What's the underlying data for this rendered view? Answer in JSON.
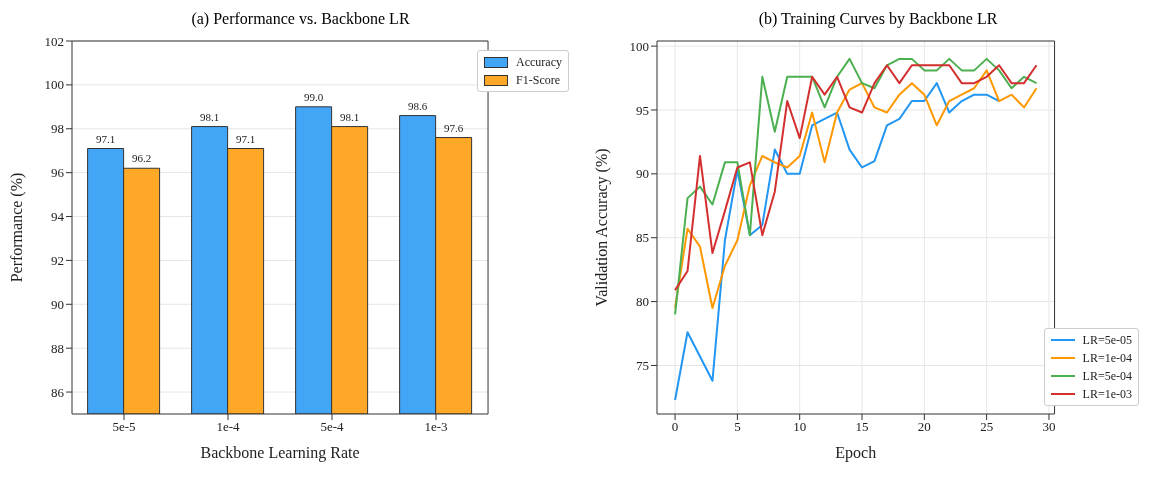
{
  "chart_data": [
    {
      "type": "bar",
      "title": "(a) Performance vs. Backbone LR",
      "xlabel": "Backbone Learning Rate",
      "ylabel": "Performance (%)",
      "categories": [
        "5e-5",
        "1e-4",
        "5e-4",
        "1e-3"
      ],
      "series": [
        {
          "name": "Accuracy",
          "color": "#42a5f5",
          "values": [
            97.1,
            98.1,
            99.0,
            98.6
          ],
          "value_labels": [
            "97.1",
            "98.1",
            "99.0",
            "98.6"
          ]
        },
        {
          "name": "F1-Score",
          "color": "#ffa726",
          "values": [
            96.2,
            97.1,
            98.1,
            97.6
          ],
          "value_labels": [
            "96.2",
            "97.1",
            "98.1",
            "97.6"
          ]
        }
      ],
      "ylim": [
        85,
        102
      ],
      "yticks": [
        86,
        88,
        90,
        92,
        94,
        96,
        98,
        100,
        102
      ],
      "grid": "y",
      "legend": "top right"
    },
    {
      "type": "line",
      "title": "(b) Training Curves by Backbone LR",
      "xlabel": "Epoch",
      "ylabel": "Validation Accuracy (%)",
      "x": [
        0,
        1,
        2,
        3,
        4,
        5,
        6,
        7,
        8,
        9,
        10,
        11,
        12,
        13,
        14,
        15,
        16,
        17,
        18,
        19,
        20,
        21,
        22,
        23,
        24,
        25,
        26,
        27,
        28,
        29
      ],
      "series": [
        {
          "name": "LR=5e-05",
          "color": "#2196f3",
          "values": [
            72.3,
            77.6,
            75.7,
            73.8,
            84.8,
            90.3,
            85.2,
            86.0,
            91.9,
            90.0,
            90.0,
            93.8,
            94.3,
            94.8,
            91.9,
            90.5,
            91.0,
            93.8,
            94.3,
            95.7,
            95.7,
            97.1,
            94.8,
            95.7,
            96.2,
            96.2,
            95.7,
            null,
            null,
            null
          ]
        },
        {
          "name": "LR=1e-04",
          "color": "#ff9800",
          "values": [
            79.5,
            85.7,
            84.3,
            79.5,
            82.8,
            84.8,
            89.1,
            91.4,
            90.9,
            90.5,
            91.4,
            94.8,
            90.9,
            94.8,
            96.6,
            97.1,
            95.2,
            94.8,
            96.2,
            97.1,
            96.2,
            93.8,
            95.7,
            96.2,
            96.7,
            98.1,
            95.7,
            96.2,
            95.2,
            96.7
          ]
        },
        {
          "name": "LR=5e-04",
          "color": "#4caf50",
          "values": [
            79.0,
            88.1,
            89.0,
            87.6,
            90.9,
            90.9,
            85.2,
            97.6,
            93.3,
            97.6,
            97.6,
            97.6,
            95.2,
            97.6,
            99.0,
            97.1,
            96.7,
            98.5,
            99.0,
            99.0,
            98.1,
            98.1,
            99.0,
            98.1,
            98.1,
            99.0,
            98.1,
            96.7,
            97.6,
            97.1
          ]
        },
        {
          "name": "LR=1e-03",
          "color": "#d32f2f",
          "values": [
            80.9,
            82.4,
            91.4,
            83.8,
            87.1,
            90.5,
            90.9,
            85.2,
            88.6,
            95.7,
            92.8,
            97.6,
            96.2,
            97.6,
            95.2,
            94.8,
            97.1,
            98.5,
            97.1,
            98.5,
            98.5,
            98.5,
            98.5,
            97.1,
            97.1,
            97.6,
            98.5,
            97.1,
            97.1,
            98.5
          ]
        }
      ],
      "xlim": [
        -1.45,
        30.45
      ],
      "xticks": [
        0,
        5,
        10,
        15,
        20,
        25,
        30
      ],
      "ylim": [
        71.2,
        100.4
      ],
      "yticks": [
        75,
        80,
        85,
        90,
        95,
        100
      ],
      "grid": true,
      "legend": "bottom right"
    }
  ]
}
